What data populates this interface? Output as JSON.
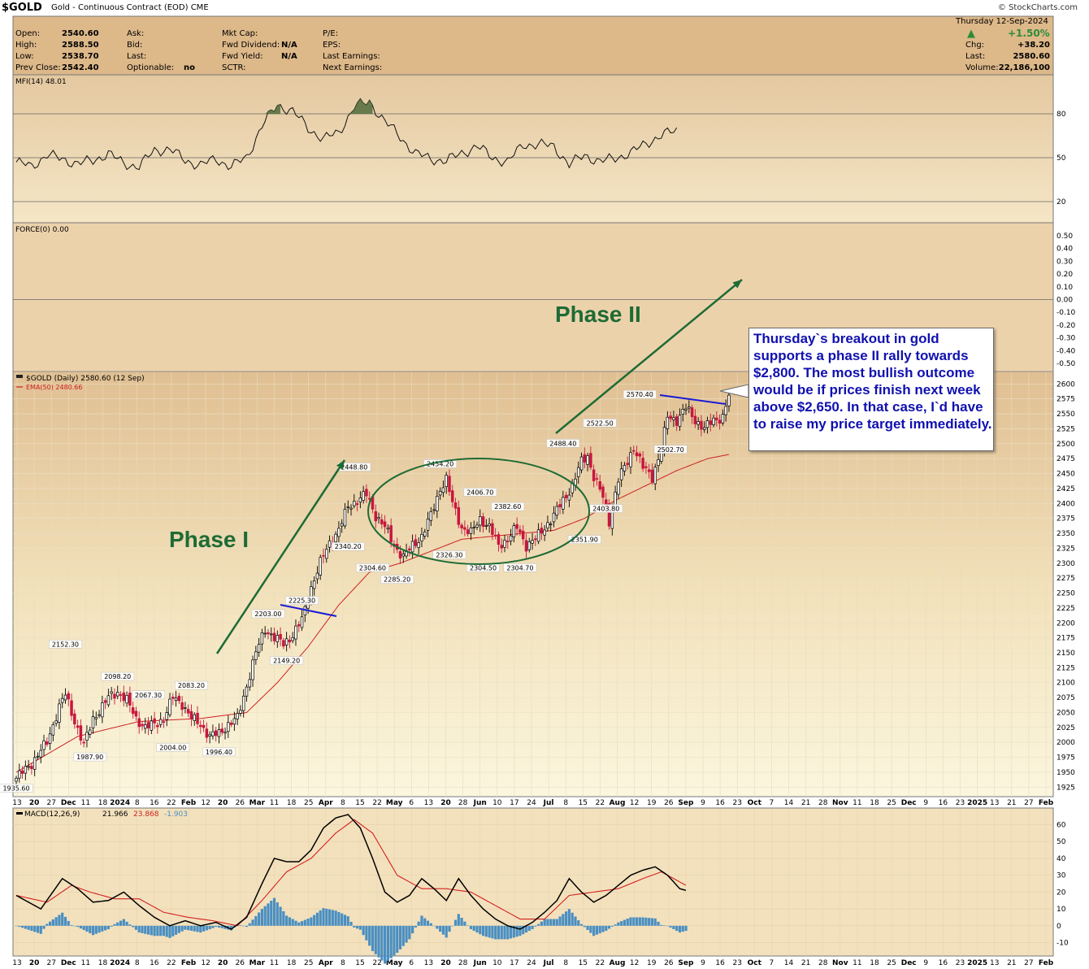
{
  "header": {
    "symbol": "$GOLD",
    "description": "Gold - Continuous Contract (EOD)",
    "exchange": "CME",
    "watermark": "© StockCharts.com"
  },
  "quote": {
    "col1": [
      {
        "label": "Open:",
        "value": "2540.60"
      },
      {
        "label": "High:",
        "value": "2588.50"
      },
      {
        "label": "Low:",
        "value": "2538.70"
      },
      {
        "label": "Prev Close:",
        "value": "2542.40"
      }
    ],
    "col2": [
      {
        "label": "Ask:",
        "value": ""
      },
      {
        "label": "Bid:",
        "value": ""
      },
      {
        "label": "Last:",
        "value": ""
      },
      {
        "label": "Optionable:",
        "value": "no"
      }
    ],
    "col3": [
      {
        "label": "Mkt Cap:",
        "value": ""
      },
      {
        "label": "Fwd Dividend:",
        "value": "N/A"
      },
      {
        "label": "Fwd Yield:",
        "value": "N/A"
      },
      {
        "label": "SCTR:",
        "value": ""
      }
    ],
    "col4": [
      {
        "label": "P/E:",
        "value": ""
      },
      {
        "label": "EPS:",
        "value": ""
      },
      {
        "label": "Last Earnings:",
        "value": ""
      },
      {
        "label": "Next Earnings:",
        "value": ""
      }
    ],
    "date": "Thursday  12-Sep-2024",
    "pct_change": "+1.50%",
    "right": [
      {
        "label": "Chg:",
        "value": "+38.20"
      },
      {
        "label": "Last:",
        "value": "2580.60"
      },
      {
        "label": "Volume:",
        "value": "22,186,100"
      }
    ],
    "up_color": "#2e8b3a"
  },
  "colors": {
    "panel_bg": "#fcf5d9",
    "quote_bg": "#ddb889",
    "price_panel_top": "#e0bf92",
    "price_panel_bottom": "#fbf6de",
    "up_candle": "#000000",
    "down_candle": "#c8173e",
    "ema": "#cc2222",
    "annotation_green": "#1e6b35",
    "trendline_blue": "#1a1ad6",
    "macd_hist": "#4a8fc2"
  },
  "chart_data": [
    {
      "type": "line",
      "panel": "mfi",
      "title": "MFI(14) 48.01",
      "y_ticks": [
        80,
        50,
        20
      ],
      "ylim": [
        10,
        100
      ],
      "x_index_range": [
        0,
        215
      ],
      "x": [
        0,
        5,
        10,
        15,
        20,
        25,
        30,
        35,
        40,
        45,
        50,
        55,
        60,
        65,
        70,
        75,
        80,
        85,
        90,
        95,
        100,
        105,
        110,
        115,
        120,
        125,
        130,
        135,
        140,
        145,
        150,
        155,
        160,
        165,
        170,
        175,
        180,
        185,
        190,
        195,
        200,
        205,
        210,
        215
      ],
      "values": [
        47,
        44,
        52,
        49,
        46,
        48,
        53,
        46,
        44,
        55,
        56,
        48,
        45,
        49,
        44,
        50,
        72,
        86,
        82,
        70,
        63,
        67,
        85,
        88,
        75,
        64,
        53,
        49,
        48,
        53,
        58,
        50,
        47,
        59,
        59,
        58,
        45,
        52,
        47,
        50,
        53,
        60,
        65,
        69
      ]
    },
    {
      "type": "line",
      "panel": "force",
      "title": "FORCE(0) 0.00",
      "y_ticks": [
        "0.50",
        "0.40",
        "0.30",
        "0.20",
        "0.10",
        "0.00",
        "-0.10",
        "-0.20",
        "-0.30",
        "-0.40",
        "-0.50"
      ],
      "ylim": [
        -0.55,
        0.55
      ],
      "values": []
    },
    {
      "type": "candlestick",
      "panel": "price",
      "title": "$GOLD (Daily) 2580.60 (12 Sep)",
      "ema_label": "EMA(50) 2480.66",
      "ylim": [
        1920,
        2610
      ],
      "y_ticks": [
        2600,
        2575,
        2550,
        2525,
        2500,
        2475,
        2450,
        2425,
        2400,
        2375,
        2350,
        2325,
        2300,
        2275,
        2250,
        2225,
        2200,
        2175,
        2150,
        2125,
        2100,
        2075,
        2050,
        2025,
        2000,
        1975,
        1950,
        1925
      ],
      "x_index_range": [
        0,
        215
      ],
      "close_keyframes": [
        [
          0,
          1940
        ],
        [
          5,
          1965
        ],
        [
          10,
          2000
        ],
        [
          14,
          2060
        ],
        [
          16,
          2080
        ],
        [
          18,
          2050
        ],
        [
          22,
          1995
        ],
        [
          25,
          2040
        ],
        [
          28,
          2060
        ],
        [
          30,
          2075
        ],
        [
          33,
          2085
        ],
        [
          36,
          2070
        ],
        [
          39,
          2040
        ],
        [
          42,
          2025
        ],
        [
          45,
          2030
        ],
        [
          48,
          2040
        ],
        [
          51,
          2075
        ],
        [
          54,
          2065
        ],
        [
          57,
          2040
        ],
        [
          60,
          2030
        ],
        [
          63,
          2010
        ],
        [
          66,
          2015
        ],
        [
          69,
          2030
        ],
        [
          72,
          2040
        ],
        [
          75,
          2095
        ],
        [
          78,
          2150
        ],
        [
          81,
          2190
        ],
        [
          84,
          2175
        ],
        [
          87,
          2165
        ],
        [
          90,
          2180
        ],
        [
          93,
          2205
        ],
        [
          96,
          2260
        ],
        [
          99,
          2300
        ],
        [
          102,
          2335
        ],
        [
          105,
          2355
        ],
        [
          108,
          2395
        ],
        [
          111,
          2405
        ],
        [
          114,
          2415
        ],
        [
          117,
          2380
        ],
        [
          120,
          2360
        ],
        [
          123,
          2330
        ],
        [
          126,
          2310
        ],
        [
          129,
          2330
        ],
        [
          132,
          2345
        ],
        [
          135,
          2380
        ],
        [
          138,
          2425
        ],
        [
          140,
          2440
        ],
        [
          142,
          2400
        ],
        [
          145,
          2360
        ],
        [
          148,
          2350
        ],
        [
          151,
          2375
        ],
        [
          154,
          2360
        ],
        [
          157,
          2330
        ],
        [
          160,
          2340
        ],
        [
          163,
          2360
        ],
        [
          166,
          2330
        ],
        [
          169,
          2340
        ],
        [
          172,
          2360
        ],
        [
          175,
          2380
        ],
        [
          178,
          2405
        ],
        [
          181,
          2430
        ],
        [
          184,
          2470
        ],
        [
          186,
          2480
        ],
        [
          188,
          2445
        ],
        [
          191,
          2410
        ],
        [
          193,
          2370
        ],
        [
          196,
          2440
        ],
        [
          199,
          2470
        ],
        [
          201,
          2495
        ],
        [
          204,
          2460
        ],
        [
          207,
          2445
        ],
        [
          210,
          2490
        ],
        [
          212,
          2545
        ],
        [
          215,
          2540
        ],
        [
          218,
          2560
        ],
        [
          221,
          2540
        ],
        [
          224,
          2525
        ],
        [
          227,
          2540
        ],
        [
          230,
          2545
        ],
        [
          232,
          2580
        ]
      ],
      "ema_keyframes": [
        [
          0,
          1950
        ],
        [
          20,
          2010
        ],
        [
          40,
          2035
        ],
        [
          60,
          2040
        ],
        [
          75,
          2050
        ],
        [
          85,
          2100
        ],
        [
          95,
          2160
        ],
        [
          105,
          2230
        ],
        [
          115,
          2285
        ],
        [
          125,
          2300
        ],
        [
          135,
          2320
        ],
        [
          145,
          2340
        ],
        [
          155,
          2345
        ],
        [
          165,
          2350
        ],
        [
          175,
          2355
        ],
        [
          185,
          2375
        ],
        [
          195,
          2405
        ],
        [
          205,
          2430
        ],
        [
          215,
          2455
        ],
        [
          225,
          2475
        ],
        [
          232,
          2482
        ]
      ],
      "labels": [
        {
          "text": "1935.60",
          "x": 0,
          "y": 1935.6,
          "pos": "below"
        },
        {
          "text": "2152.30",
          "x": 16,
          "y": 2152.3,
          "pos": "above"
        },
        {
          "text": "1987.90",
          "x": 24,
          "y": 1987.9,
          "pos": "below"
        },
        {
          "text": "2098.20",
          "x": 33,
          "y": 2098.2,
          "pos": "above"
        },
        {
          "text": "2067.30",
          "x": 43,
          "y": 2067.3,
          "pos": "above"
        },
        {
          "text": "2004.00",
          "x": 51,
          "y": 2004.0,
          "pos": "below"
        },
        {
          "text": "2083.20",
          "x": 57,
          "y": 2083.2,
          "pos": "above"
        },
        {
          "text": "1996.40",
          "x": 66,
          "y": 1996.4,
          "pos": "below"
        },
        {
          "text": "2203.00",
          "x": 82,
          "y": 2203.0,
          "pos": "above"
        },
        {
          "text": "2149.20",
          "x": 88,
          "y": 2149.2,
          "pos": "below"
        },
        {
          "text": "2225.30",
          "x": 93,
          "y": 2225.3,
          "pos": "above"
        },
        {
          "text": "2340.20",
          "x": 108,
          "y": 2340.2,
          "pos": "below"
        },
        {
          "text": "2448.80",
          "x": 110,
          "y": 2448.8,
          "pos": "above"
        },
        {
          "text": "2304.60",
          "x": 116,
          "y": 2304.6,
          "pos": "below"
        },
        {
          "text": "2285.20",
          "x": 124,
          "y": 2285.2,
          "pos": "below"
        },
        {
          "text": "2454.20",
          "x": 138,
          "y": 2454.2,
          "pos": "above"
        },
        {
          "text": "2326.30",
          "x": 141,
          "y": 2326.3,
          "pos": "below"
        },
        {
          "text": "2406.70",
          "x": 151,
          "y": 2406.7,
          "pos": "above"
        },
        {
          "text": "2304.50",
          "x": 152,
          "y": 2304.5,
          "pos": "below"
        },
        {
          "text": "2382.60",
          "x": 160,
          "y": 2382.6,
          "pos": "above"
        },
        {
          "text": "2304.70",
          "x": 164,
          "y": 2304.7,
          "pos": "below"
        },
        {
          "text": "2488.40",
          "x": 178,
          "y": 2488.4,
          "pos": "above"
        },
        {
          "text": "2351.90",
          "x": 185,
          "y": 2351.9,
          "pos": "below"
        },
        {
          "text": "2403.80",
          "x": 192,
          "y": 2403.8,
          "pos": "below"
        },
        {
          "text": "2522.50",
          "x": 190,
          "y": 2522.5,
          "pos": "above"
        },
        {
          "text": "2570.40",
          "x": 203,
          "y": 2570.4,
          "pos": "above"
        },
        {
          "text": "2502.70",
          "x": 213,
          "y": 2502.7,
          "pos": "below"
        }
      ],
      "annotations": {
        "phase1": "Phase I",
        "phase2": "Phase II",
        "callout": "Thursday`s breakout in gold supports a phase II rally towards $2,800. The most bullish outcome would be if prices finish next week above $2,650. In that case, I`d have to raise my price target immediately."
      }
    },
    {
      "type": "line",
      "panel": "macd",
      "title": "MACD(12,26,9)",
      "title_values": [
        "21.966",
        "23.868",
        "-1.903"
      ],
      "y_ticks": [
        60,
        50,
        40,
        30,
        20,
        10,
        0,
        -10
      ],
      "ylim": [
        -16,
        66
      ],
      "macd_keyframes": [
        [
          0,
          18
        ],
        [
          8,
          10
        ],
        [
          15,
          28
        ],
        [
          20,
          22
        ],
        [
          25,
          14
        ],
        [
          30,
          15
        ],
        [
          35,
          20
        ],
        [
          40,
          12
        ],
        [
          45,
          5
        ],
        [
          50,
          0
        ],
        [
          55,
          3
        ],
        [
          60,
          0
        ],
        [
          65,
          2
        ],
        [
          70,
          -2
        ],
        [
          75,
          5
        ],
        [
          80,
          25
        ],
        [
          84,
          40
        ],
        [
          88,
          38
        ],
        [
          92,
          38
        ],
        [
          96,
          45
        ],
        [
          100,
          58
        ],
        [
          104,
          64
        ],
        [
          108,
          66
        ],
        [
          112,
          58
        ],
        [
          116,
          40
        ],
        [
          120,
          20
        ],
        [
          124,
          14
        ],
        [
          128,
          18
        ],
        [
          132,
          28
        ],
        [
          136,
          22
        ],
        [
          140,
          15
        ],
        [
          144,
          28
        ],
        [
          148,
          18
        ],
        [
          152,
          10
        ],
        [
          156,
          4
        ],
        [
          160,
          0
        ],
        [
          164,
          -2
        ],
        [
          168,
          2
        ],
        [
          172,
          8
        ],
        [
          176,
          15
        ],
        [
          180,
          28
        ],
        [
          184,
          20
        ],
        [
          188,
          14
        ],
        [
          192,
          18
        ],
        [
          196,
          24
        ],
        [
          200,
          30
        ],
        [
          204,
          33
        ],
        [
          208,
          35
        ],
        [
          212,
          30
        ],
        [
          216,
          22
        ],
        [
          218,
          21
        ]
      ],
      "signal_keyframes": [
        [
          0,
          18
        ],
        [
          10,
          14
        ],
        [
          18,
          24
        ],
        [
          24,
          20
        ],
        [
          32,
          16
        ],
        [
          40,
          16
        ],
        [
          48,
          8
        ],
        [
          56,
          5
        ],
        [
          64,
          3
        ],
        [
          72,
          0
        ],
        [
          80,
          15
        ],
        [
          88,
          32
        ],
        [
          96,
          40
        ],
        [
          104,
          55
        ],
        [
          110,
          63
        ],
        [
          116,
          55
        ],
        [
          124,
          30
        ],
        [
          132,
          22
        ],
        [
          140,
          22
        ],
        [
          148,
          20
        ],
        [
          156,
          12
        ],
        [
          164,
          4
        ],
        [
          172,
          4
        ],
        [
          180,
          18
        ],
        [
          188,
          20
        ],
        [
          196,
          22
        ],
        [
          204,
          28
        ],
        [
          210,
          32
        ],
        [
          218,
          24
        ]
      ]
    }
  ],
  "x_axis": {
    "ticks": [
      "13",
      "20",
      "27",
      "Dec",
      "11",
      "18",
      "2024",
      "8",
      "16",
      "22",
      "Feb",
      "12",
      "20",
      "26",
      "Mar",
      "11",
      "18",
      "25",
      "Apr",
      "8",
      "15",
      "22",
      "May",
      "6",
      "13",
      "20",
      "28",
      "Jun",
      "10",
      "17",
      "24",
      "Jul",
      "8",
      "15",
      "22",
      "Aug",
      "12",
      "19",
      "26",
      "Sep",
      "9",
      "16",
      "23",
      "Oct",
      "7",
      "14",
      "21",
      "28",
      "Nov",
      "11",
      "18",
      "25",
      "Dec",
      "9",
      "16",
      "23",
      "2025",
      "13",
      "21",
      "27",
      "Feb"
    ]
  }
}
